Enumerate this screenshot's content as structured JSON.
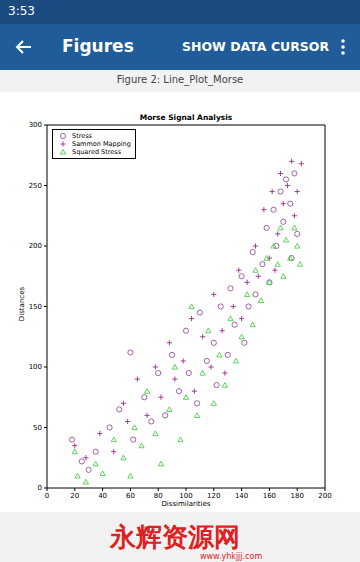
{
  "app": {
    "status_time": "3:53",
    "toolbar_title": "Figures",
    "action": "SHOW DATA CURSOR",
    "figure_caption": "Figure 2: Line_Plot_Morse",
    "watermark": {
      "brand": "永辉资源网",
      "url": "www.yhkjjj.com"
    }
  },
  "chart_data": {
    "type": "scatter",
    "title": "Morse Signal Analysis",
    "x_label": "Dissimilarities",
    "y_label": "Distances",
    "xlim": [
      0,
      200
    ],
    "xticks": [
      0,
      20,
      40,
      60,
      80,
      100,
      120,
      140,
      160,
      180,
      200
    ],
    "ylim": [
      0,
      300
    ],
    "yticks": [
      0,
      50,
      100,
      150,
      200,
      250,
      300
    ],
    "legend": "upper left",
    "series": [
      {
        "name": "Stress",
        "color": "#8a3c8e",
        "marker": "circle",
        "x": [
          18,
          25,
          30,
          35,
          45,
          52,
          60,
          62,
          70,
          75,
          80,
          85,
          90,
          95,
          100,
          102,
          108,
          110,
          115,
          120,
          122,
          125,
          130,
          132,
          135,
          140,
          142,
          145,
          148,
          150,
          155,
          158,
          160,
          163,
          165,
          168,
          170,
          172,
          175,
          178,
          180,
          176
        ],
        "values": [
          40,
          22,
          15,
          30,
          50,
          65,
          112,
          40,
          75,
          55,
          95,
          60,
          110,
          80,
          130,
          95,
          70,
          145,
          105,
          120,
          85,
          150,
          110,
          165,
          135,
          175,
          120,
          150,
          195,
          160,
          185,
          215,
          170,
          230,
          200,
          245,
          220,
          255,
          235,
          260,
          210,
          190
        ]
      },
      {
        "name": "Sammon Mapping",
        "color": "#9c2f86",
        "marker": "plus",
        "x": [
          20,
          28,
          38,
          48,
          55,
          58,
          65,
          72,
          78,
          82,
          88,
          92,
          98,
          104,
          106,
          112,
          118,
          120,
          126,
          128,
          134,
          138,
          140,
          144,
          150,
          152,
          156,
          160,
          162,
          166,
          168,
          170,
          173,
          176,
          178,
          180,
          183,
          164
        ],
        "values": [
          35,
          25,
          45,
          30,
          70,
          55,
          90,
          60,
          100,
          75,
          120,
          90,
          105,
          140,
          80,
          125,
          100,
          160,
          130,
          95,
          150,
          180,
          140,
          170,
          200,
          175,
          230,
          190,
          245,
          210,
          260,
          235,
          250,
          270,
          225,
          245,
          268,
          180
        ]
      },
      {
        "name": "Squared Stress",
        "color": "#33cc33",
        "marker": "triangle",
        "x": [
          20,
          22,
          28,
          35,
          40,
          48,
          55,
          60,
          63,
          68,
          72,
          78,
          82,
          88,
          92,
          96,
          100,
          104,
          108,
          112,
          116,
          120,
          124,
          128,
          132,
          136,
          140,
          144,
          148,
          150,
          154,
          158,
          160,
          163,
          166,
          168,
          170,
          172,
          175,
          178,
          180,
          182
        ],
        "values": [
          30,
          10,
          5,
          20,
          12,
          40,
          25,
          10,
          50,
          35,
          80,
          45,
          20,
          65,
          100,
          40,
          75,
          150,
          60,
          95,
          130,
          70,
          110,
          85,
          140,
          105,
          125,
          160,
          135,
          180,
          155,
          190,
          170,
          200,
          185,
          215,
          175,
          205,
          190,
          215,
          200,
          185
        ]
      }
    ]
  }
}
